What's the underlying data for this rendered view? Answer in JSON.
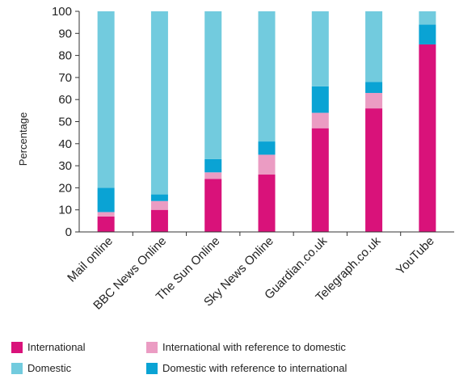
{
  "chart_data": {
    "type": "bar",
    "stacked": true,
    "ylabel": "Percentage",
    "xlabel": "",
    "ylim": [
      0,
      100
    ],
    "yticks": [
      0,
      10,
      20,
      30,
      40,
      50,
      60,
      70,
      80,
      90,
      100
    ],
    "grid": false,
    "legend_position": "bottom",
    "categories": [
      "Mail online",
      "BBC News Online",
      "The Sun Online",
      "Sky News Online",
      "Guardian.co.uk",
      "Telegraph.co.uk",
      "YouTube"
    ],
    "series": [
      {
        "name": "International",
        "color": "#d9127a",
        "values": [
          7,
          10,
          24,
          26,
          47,
          56,
          85
        ]
      },
      {
        "name": "International with reference to domestic",
        "color": "#eb9cc3",
        "values": [
          2,
          4,
          3,
          9,
          7,
          7,
          0
        ]
      },
      {
        "name": "Domestic with reference to international",
        "color": "#0aa3d4",
        "values": [
          11,
          3,
          6,
          6,
          12,
          5,
          9
        ]
      },
      {
        "name": "Domestic",
        "color": "#72cbde",
        "values": [
          80,
          83,
          67,
          59,
          34,
          32,
          6
        ]
      }
    ]
  },
  "legend": {
    "items": [
      {
        "label": "International",
        "color": "#d9127a"
      },
      {
        "label": "International with reference to domestic",
        "color": "#eb9cc3"
      },
      {
        "label": "Domestic",
        "color": "#72cbde"
      },
      {
        "label": "Domestic with reference to international",
        "color": "#0aa3d4"
      }
    ]
  },
  "colors": {
    "axis": "#333333"
  }
}
